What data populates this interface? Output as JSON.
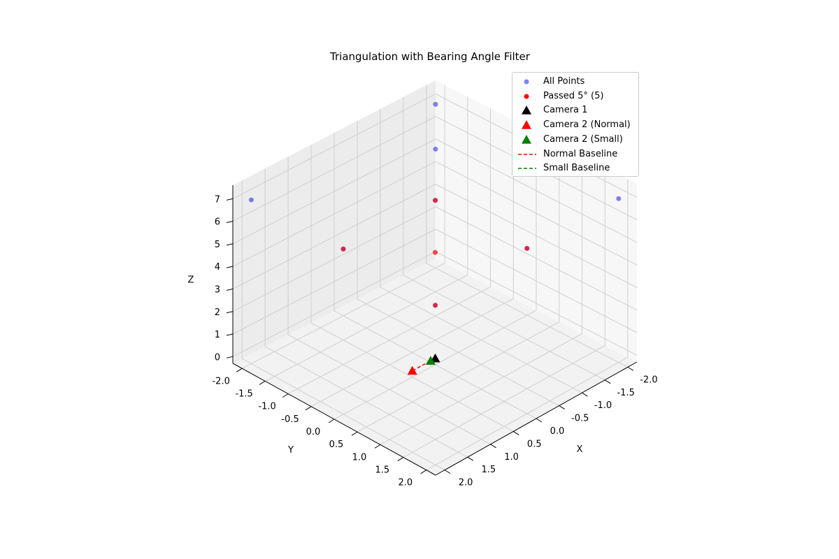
{
  "chart_data": {
    "type": "scatter",
    "projection": "3d",
    "title": "Triangulation with Bearing Angle Filter",
    "xlabel": "X",
    "ylabel": "Y",
    "zlabel": "Z",
    "xlim": [
      -2.2,
      2.2
    ],
    "ylim": [
      -2.2,
      2.2
    ],
    "zlim": [
      -0.3,
      7.6
    ],
    "x_ticks": [
      "-2.0",
      "-1.5",
      "-1.0",
      "-0.5",
      "0.0",
      "0.5",
      "1.0",
      "1.5",
      "2.0"
    ],
    "y_ticks": [
      "-2.0",
      "-1.5",
      "-1.0",
      "-0.5",
      "0.0",
      "0.5",
      "1.0",
      "1.5",
      "2.0"
    ],
    "z_ticks": [
      "0",
      "1",
      "2",
      "3",
      "4",
      "5",
      "6",
      "7"
    ],
    "grid": true,
    "legend_position": "top-right",
    "series": [
      {
        "name": "All Points",
        "kind": "points",
        "color": "#4b4bea",
        "points": [
          {
            "x": -2,
            "y": -2,
            "z": 7
          },
          {
            "x": 2,
            "y": -2,
            "z": 7
          },
          {
            "x": -2,
            "y": 2,
            "z": 7
          },
          {
            "x": -2,
            "y": -2,
            "z": 5
          },
          {
            "x": -1,
            "y": -1,
            "z": 5
          },
          {
            "x": 1,
            "y": -1,
            "z": 5
          },
          {
            "x": -1,
            "y": 1,
            "z": 5
          },
          {
            "x": 1,
            "y": 1,
            "z": 5
          }
        ]
      },
      {
        "name": "Passed 5° (5)",
        "kind": "points",
        "color": "#ff0000",
        "points": [
          {
            "x": -1,
            "y": -1,
            "z": 5
          },
          {
            "x": 1,
            "y": -1,
            "z": 5
          },
          {
            "x": -1,
            "y": 1,
            "z": 5
          },
          {
            "x": 1,
            "y": 1,
            "z": 5
          },
          {
            "x": 0,
            "y": 0,
            "z": 5
          }
        ]
      },
      {
        "name": "Camera 1",
        "kind": "marker",
        "color": "#000000",
        "points": [
          {
            "x": 0,
            "y": 0,
            "z": 0
          }
        ]
      },
      {
        "name": "Camera 2 (Normal)",
        "kind": "marker",
        "color": "#ff0000",
        "points": [
          {
            "x": 0.5,
            "y": 0,
            "z": 0
          }
        ]
      },
      {
        "name": "Camera 2 (Small)",
        "kind": "marker",
        "color": "#008000",
        "points": [
          {
            "x": 0.1,
            "y": 0,
            "z": 0
          }
        ]
      },
      {
        "name": "Normal Baseline",
        "kind": "line",
        "color": "#ff0000",
        "points": [
          {
            "x": 0,
            "y": 0,
            "z": 0
          },
          {
            "x": 0.5,
            "y": 0,
            "z": 0
          }
        ]
      },
      {
        "name": "Small Baseline",
        "kind": "line",
        "color": "#008000",
        "points": [
          {
            "x": 0,
            "y": 0,
            "z": 0
          },
          {
            "x": 0.1,
            "y": 0,
            "z": 0
          }
        ]
      }
    ]
  }
}
